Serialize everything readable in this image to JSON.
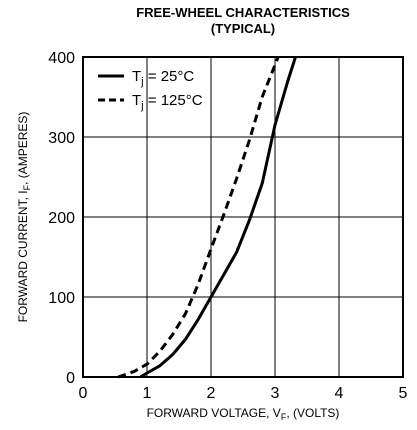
{
  "chart_data": {
    "type": "line",
    "title": "FREE-WHEEL CHARACTERISTICS",
    "subtitle": "(TYPICAL)",
    "xlabel": {
      "main": "FORWARD VOLTAGE, V",
      "sub": "F",
      "tail": ", (VOLTS)"
    },
    "ylabel": {
      "main": "FORWARD CURRENT, I",
      "sub": "F",
      "tail": ", (AMPERES)"
    },
    "xlim": [
      0,
      5
    ],
    "ylim": [
      0,
      400
    ],
    "x_ticks": [
      0,
      1,
      2,
      3,
      4,
      5
    ],
    "y_ticks": [
      0,
      100,
      200,
      300,
      400
    ],
    "grid": true,
    "legend_position": "top-left",
    "series": [
      {
        "name_main": "T",
        "name_sub": "j",
        "name_tail": " = 25°C",
        "style": "solid",
        "points": [
          [
            0.9,
            0
          ],
          [
            1.0,
            5
          ],
          [
            1.2,
            14
          ],
          [
            1.4,
            28
          ],
          [
            1.6,
            47
          ],
          [
            1.8,
            72
          ],
          [
            2.0,
            100
          ],
          [
            2.2,
            128
          ],
          [
            2.4,
            156
          ],
          [
            2.6,
            196
          ],
          [
            2.8,
            242
          ],
          [
            3.0,
            315
          ],
          [
            3.2,
            370
          ],
          [
            3.32,
            400
          ]
        ]
      },
      {
        "name_main": "T",
        "name_sub": "j",
        "name_tail": " = 125°C",
        "style": "dashed",
        "points": [
          [
            0.55,
            0
          ],
          [
            0.8,
            7
          ],
          [
            1.0,
            16
          ],
          [
            1.2,
            32
          ],
          [
            1.4,
            53
          ],
          [
            1.6,
            79
          ],
          [
            1.8,
            116
          ],
          [
            2.0,
            160
          ],
          [
            2.2,
            203
          ],
          [
            2.4,
            248
          ],
          [
            2.6,
            296
          ],
          [
            2.8,
            350
          ],
          [
            3.05,
            400
          ]
        ]
      }
    ]
  }
}
